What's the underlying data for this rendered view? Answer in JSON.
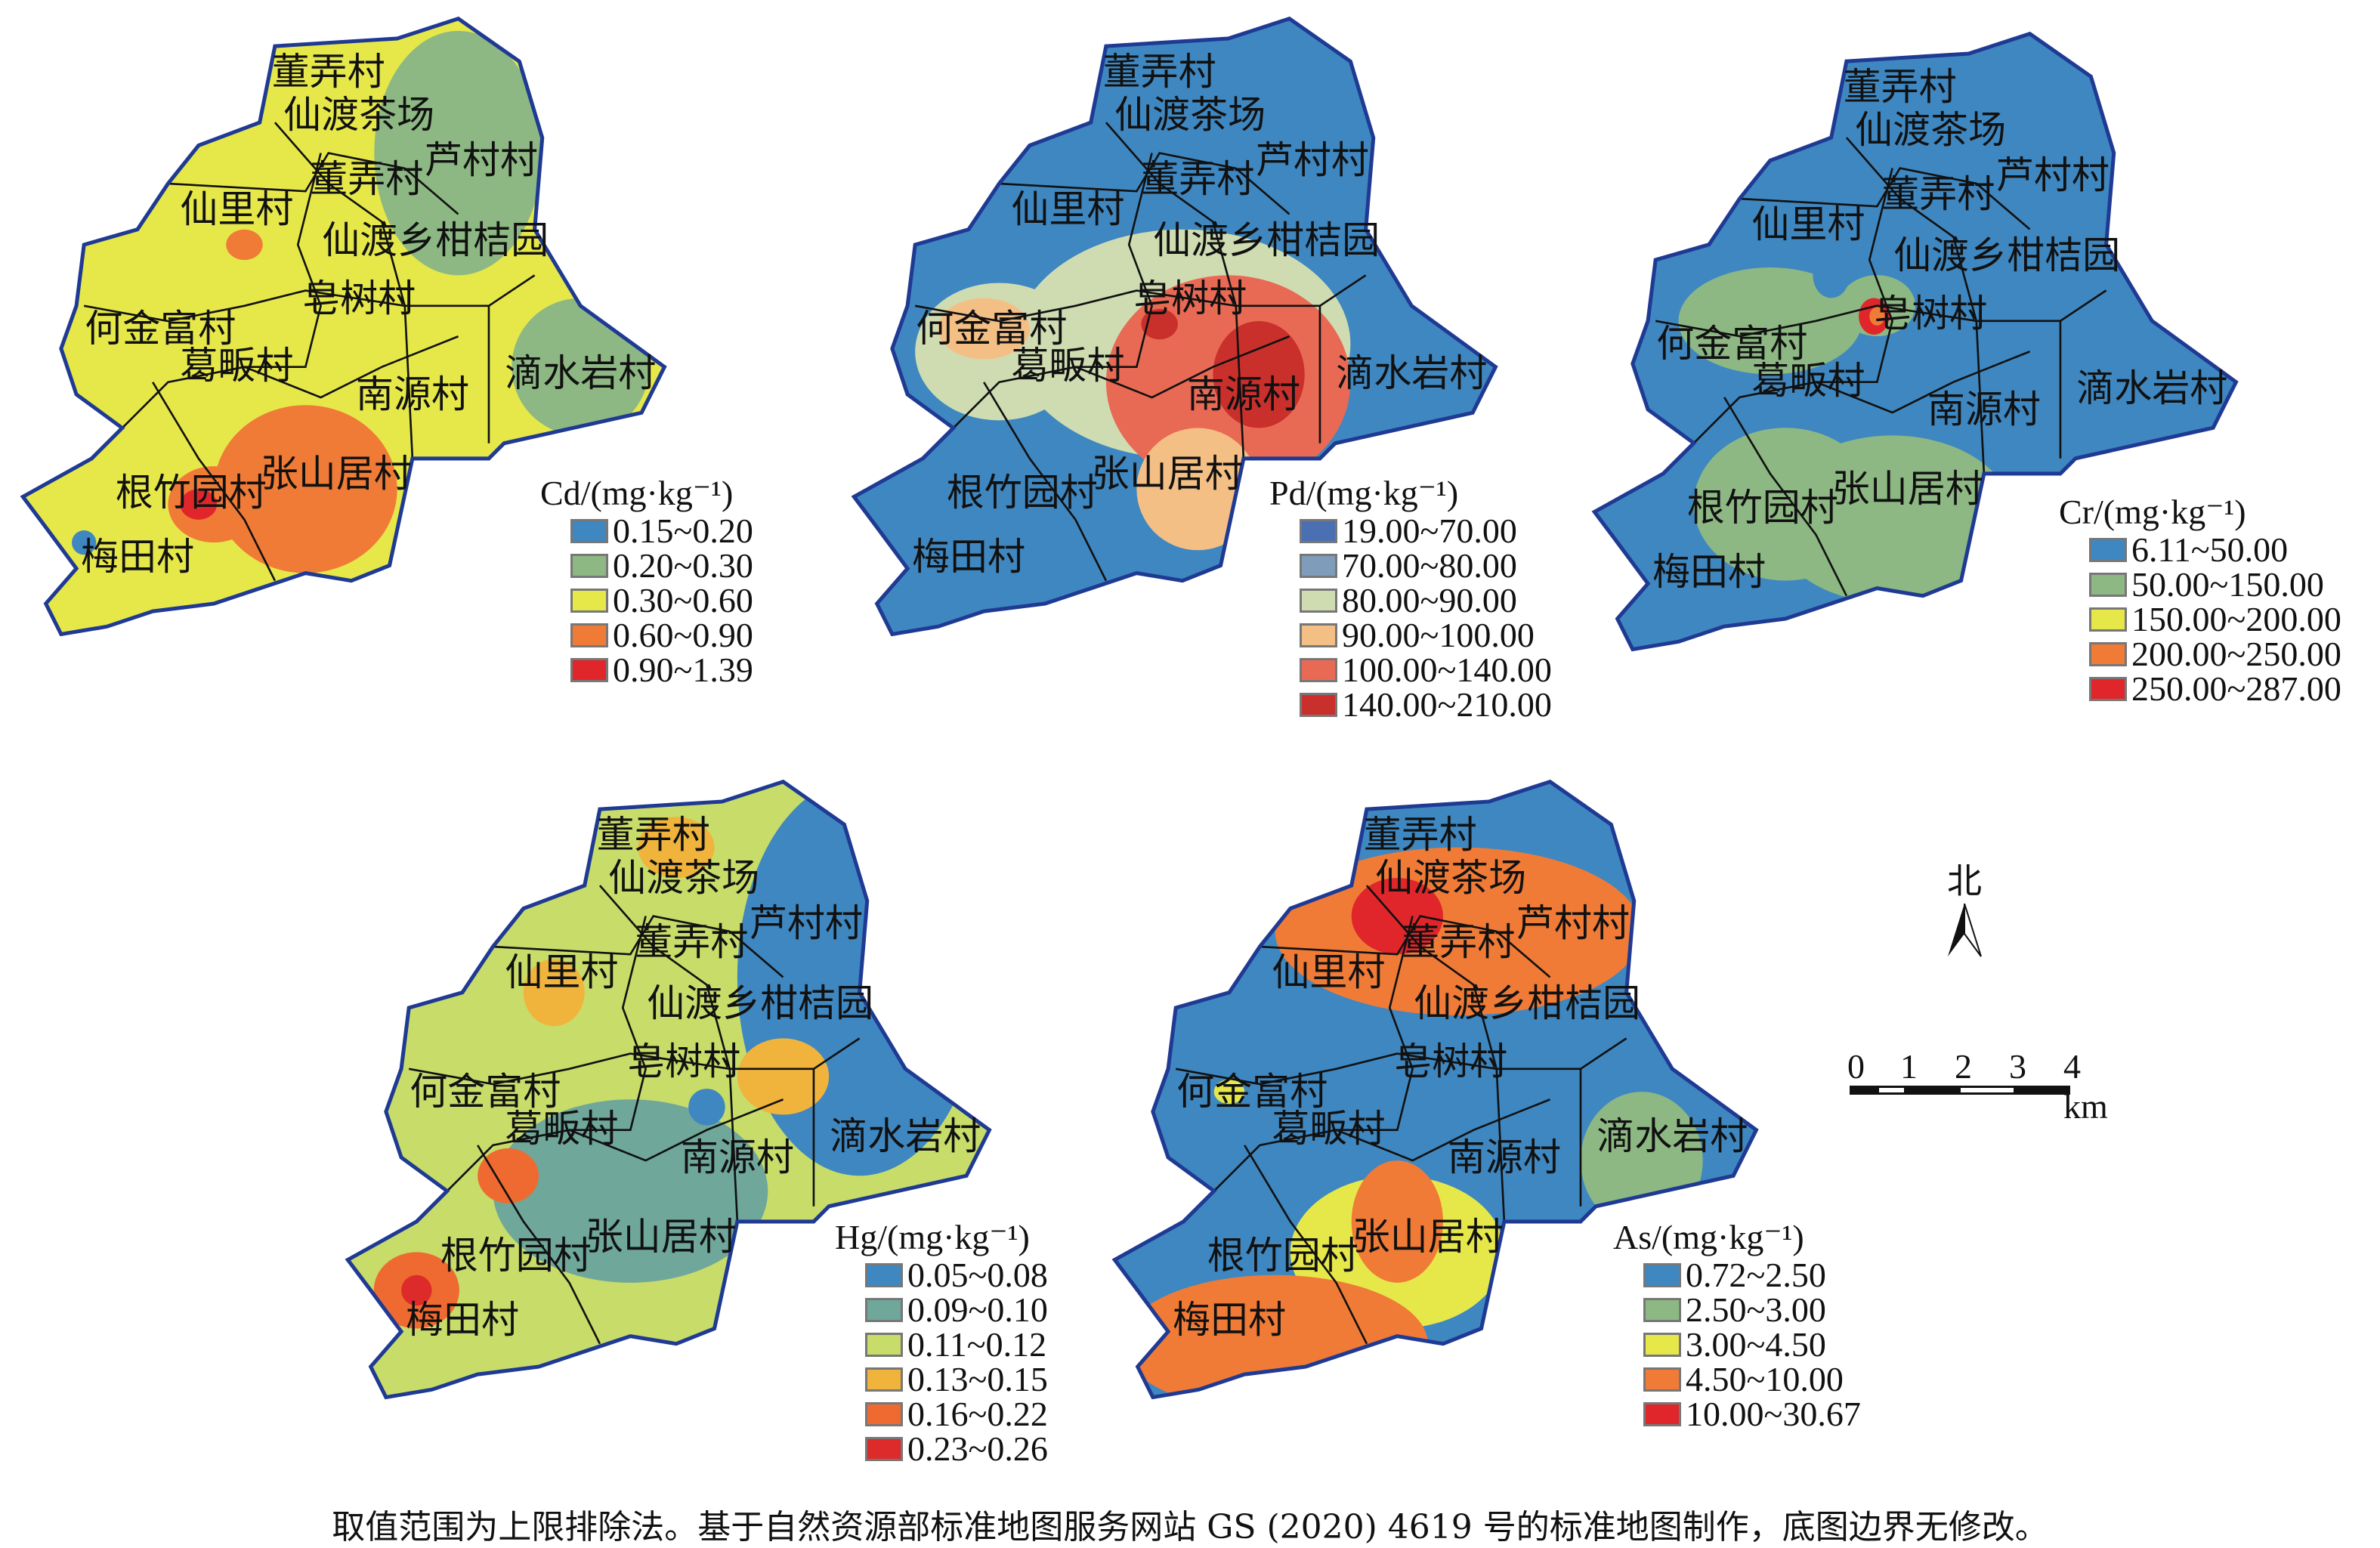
{
  "villages": [
    "董弄村",
    "仙渡茶场",
    "董弄村",
    "芦村村",
    "仙里村",
    "仙渡乡柑桔园",
    "皂树村",
    "何金富村",
    "葛畈村",
    "南源村",
    "滴水岩村",
    "张山居村",
    "根竹园村",
    "梅田村"
  ],
  "maps": [
    {
      "id": "cd",
      "legend_title": "Cd/(mg·kg⁻¹)",
      "base": "#e6e84a",
      "classes": [
        {
          "range": "0.15~0.20",
          "color": "#3f87c0"
        },
        {
          "range": "0.20~0.30",
          "color": "#8db883"
        },
        {
          "range": "0.30~0.60",
          "color": "#e6e84a"
        },
        {
          "range": "0.60~0.90",
          "color": "#f07b37"
        },
        {
          "range": "0.90~1.39",
          "color": "#e0262a"
        }
      ]
    },
    {
      "id": "pd",
      "legend_title": "Pd/(mg·kg⁻¹)",
      "base": "#3f87c0",
      "classes": [
        {
          "range": "19.00~70.00",
          "color": "#4a6fb3"
        },
        {
          "range": "70.00~80.00",
          "color": "#7f9cba"
        },
        {
          "range": "80.00~90.00",
          "color": "#cfdcb2"
        },
        {
          "range": "90.00~100.00",
          "color": "#f4bf85"
        },
        {
          "range": "100.00~140.00",
          "color": "#e86a55"
        },
        {
          "range": "140.00~210.00",
          "color": "#c9302c"
        }
      ]
    },
    {
      "id": "cr",
      "legend_title": "Cr/(mg·kg⁻¹)",
      "base": "#3f87c0",
      "classes": [
        {
          "range": "6.11~50.00",
          "color": "#3f87c0"
        },
        {
          "range": "50.00~150.00",
          "color": "#8db883"
        },
        {
          "range": "150.00~200.00",
          "color": "#e6e84a"
        },
        {
          "range": "200.00~250.00",
          "color": "#f07b37"
        },
        {
          "range": "250.00~287.00",
          "color": "#e0262a"
        }
      ]
    },
    {
      "id": "hg",
      "legend_title": "Hg/(mg·kg⁻¹)",
      "base": "#c8dc6a",
      "classes": [
        {
          "range": "0.05~0.08",
          "color": "#3f87c0"
        },
        {
          "range": "0.09~0.10",
          "color": "#6fa79a"
        },
        {
          "range": "0.11~0.12",
          "color": "#c8dc6a"
        },
        {
          "range": "0.13~0.15",
          "color": "#f0b43c"
        },
        {
          "range": "0.16~0.22",
          "color": "#ef6a30"
        },
        {
          "range": "0.23~0.26",
          "color": "#dd2a2a"
        }
      ]
    },
    {
      "id": "as",
      "legend_title": "As/(mg·kg⁻¹)",
      "base": "#3f87c0",
      "classes": [
        {
          "range": "0.72~2.50",
          "color": "#3f87c0"
        },
        {
          "range": "2.50~3.00",
          "color": "#8db883"
        },
        {
          "range": "3.00~4.50",
          "color": "#e6e84a"
        },
        {
          "range": "4.50~10.00",
          "color": "#f07b37"
        },
        {
          "range": "10.00~30.67",
          "color": "#e0262a"
        }
      ]
    }
  ],
  "north_label": "北",
  "scale": {
    "ticks": [
      "0",
      "1",
      "2",
      "3",
      "4 km"
    ]
  },
  "caption": "取值范围为上限排除法。基于自然资源部标准地图服务网站 GS (2020) 4619 号的标准地图制作，底图边界无修改。"
}
